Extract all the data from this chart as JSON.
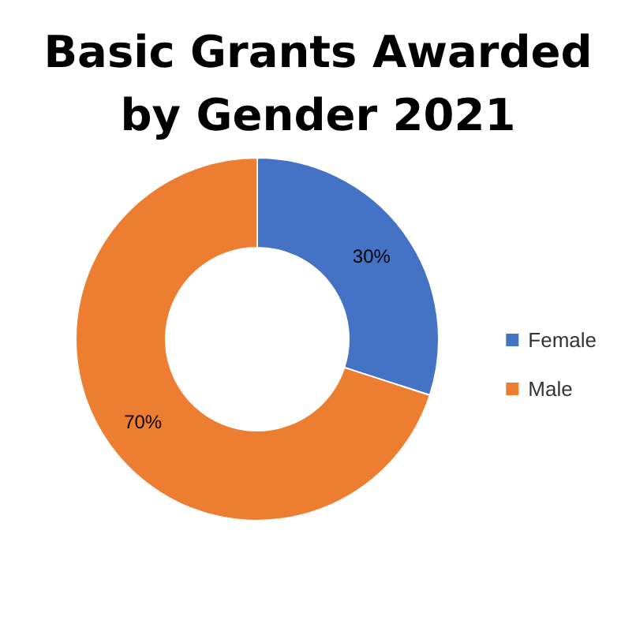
{
  "chart_data": {
    "type": "donut",
    "title": "Basic Grants Awarded\nby Gender 2021",
    "categories": [
      "Female",
      "Male"
    ],
    "values": [
      30,
      70
    ],
    "colors": [
      "#4472c4",
      "#ed7d31"
    ],
    "value_labels": [
      "30%",
      "70%"
    ],
    "legend": "right"
  }
}
